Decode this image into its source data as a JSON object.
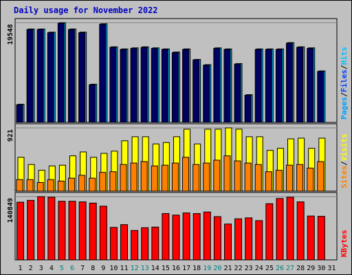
{
  "chart_data": {
    "type": "bar",
    "title": "Daily usage for November 2022",
    "categories": [
      "1",
      "2",
      "3",
      "4",
      "5",
      "6",
      "7",
      "8",
      "9",
      "10",
      "11",
      "12",
      "13",
      "14",
      "15",
      "16",
      "17",
      "18",
      "19",
      "20",
      "21",
      "22",
      "23",
      "24",
      "25",
      "26",
      "27",
      "28",
      "29",
      "30",
      "31"
    ],
    "weekend_days": [
      "5",
      "6",
      "12",
      "13",
      "19",
      "20",
      "26",
      "27"
    ],
    "colors": {
      "hits": "#00c0ff",
      "files": "#0040ff",
      "pages": "#00a0ff",
      "visits": "#ffff00",
      "sites": "#ff8000",
      "kbytes": "#ff0000",
      "weekday_label": "#000000",
      "weekend_label": "#008080",
      "title": "#0000c0",
      "background": "#c0c0c0"
    },
    "panels": [
      {
        "id": "hits",
        "ymax_label": "19548",
        "ymax": 19548,
        "legend": [
          {
            "text": "Pages",
            "color": "#00a0ff"
          },
          {
            "text": "/",
            "color": "#000000"
          },
          {
            "text": "Files",
            "color": "#0040ff"
          },
          {
            "text": "/",
            "color": "#000000"
          },
          {
            "text": "Hits",
            "color": "#00c0ff"
          }
        ],
        "series": [
          {
            "name": "Hits",
            "values": [
              3559,
              18314,
              18314,
              17697,
              19548,
              18314,
              17697,
              7486,
              19342,
              14822,
              14411,
              14617,
              14822,
              14617,
              14411,
              13794,
              14411,
              12355,
              11327,
              14617,
              14411,
              11533,
              5441,
              14411,
              14411,
              14411,
              15645,
              14822,
              14617,
              10094,
              0
            ]
          },
          {
            "name": "Files",
            "values": [
              3456,
              18211,
              18211,
              17594,
              19445,
              18211,
              17594,
              7383,
              19239,
              14719,
              14308,
              14514,
              14719,
              14514,
              14308,
              13691,
              14308,
              12252,
              11224,
              14514,
              14308,
              11430,
              5338,
              14308,
              14308,
              14308,
              15542,
              14719,
              14514,
              9991,
              0
            ]
          }
        ]
      },
      {
        "id": "visits",
        "ymax_label": "921",
        "ymax": 921,
        "legend": [
          {
            "text": "Sites",
            "color": "#ff8000"
          },
          {
            "text": "/",
            "color": "#000000"
          },
          {
            "text": "Visits",
            "color": "#ffff00"
          }
        ],
        "series": [
          {
            "name": "Visits",
            "values": [
              493,
              388,
              304,
              367,
              378,
              514,
              571,
              493,
              550,
              582,
              733,
              792,
              792,
              687,
              708,
              792,
              902,
              687,
              902,
              902,
              921,
              902,
              792,
              792,
              593,
              624,
              761,
              771,
              624,
              771,
              0
            ]
          },
          {
            "name": "Sites",
            "values": [
              168,
              168,
              126,
              168,
              147,
              189,
              231,
              189,
              273,
              283,
              388,
              409,
              430,
              367,
              378,
              409,
              493,
              388,
              409,
              451,
              514,
              440,
              409,
              388,
              283,
              304,
              378,
              388,
              336,
              430,
              0
            ]
          }
        ]
      },
      {
        "id": "kbytes",
        "ymax_label": "140849",
        "ymax": 140849,
        "legend": [
          {
            "text": "KBytes",
            "color": "#ff0000"
          }
        ],
        "series": [
          {
            "name": "KBytes",
            "values": [
              128521,
              132630,
              140849,
              139480,
              130576,
              130576,
              129206,
              126467,
              119617,
              72342,
              78507,
              65492,
              71658,
              73028,
              103177,
              99752,
              104547,
              103177,
              106601,
              96326,
              79877,
              91527,
              93582,
              87416,
              125097,
              136740,
              139480,
              129206,
              97696,
              97012,
              0
            ]
          }
        ]
      }
    ]
  }
}
